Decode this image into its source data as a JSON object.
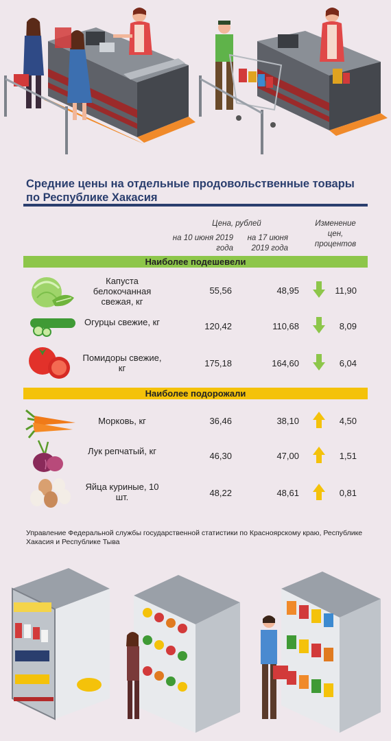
{
  "title": "Средние цены на отдельные продовольственные товары по Республике Хакасия",
  "headers": {
    "price": "Цена, рублей",
    "date1": "на 10 июня 2019 года",
    "date2": "на 17 июня 2019 года",
    "change": "Изменение цен, процентов"
  },
  "colors": {
    "accent": "#2a3e6e",
    "down": "#8dc64a",
    "up": "#f4c20a",
    "background": "#efe7ec"
  },
  "sections": {
    "down": {
      "label": "Наиболее подешевели",
      "items": [
        {
          "name": "Капуста белокочанная свежая, кг",
          "price1": "55,56",
          "price2": "48,95",
          "change": "11,90",
          "icon": "cabbage-icon"
        },
        {
          "name": "Огурцы свежие, кг",
          "price1": "120,42",
          "price2": "110,68",
          "change": "8,09",
          "icon": "cucumber-icon"
        },
        {
          "name": "Помидоры свежие, кг",
          "price1": "175,18",
          "price2": "164,60",
          "change": "6,04",
          "icon": "tomato-icon"
        }
      ]
    },
    "up": {
      "label": "Наиболее подорожали",
      "items": [
        {
          "name": "Морковь, кг",
          "price1": "36,46",
          "price2": "38,10",
          "change": "4,50",
          "icon": "carrot-icon"
        },
        {
          "name": "Лук репчатый, кг",
          "price1": "46,30",
          "price2": "47,00",
          "change": "1,51",
          "icon": "onion-icon"
        },
        {
          "name": "Яйца куриные, 10 шт.",
          "price1": "48,22",
          "price2": "48,61",
          "change": "0,81",
          "icon": "eggs-icon"
        }
      ]
    }
  },
  "source": "Управление Федеральной службы государственной статистики по Красноярскому краю, Республике Хакасия и Республике Тыва"
}
